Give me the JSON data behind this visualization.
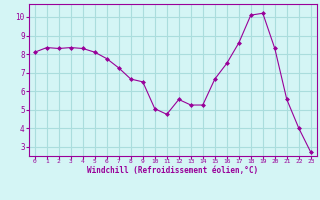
{
  "x": [
    0,
    1,
    2,
    3,
    4,
    5,
    6,
    7,
    8,
    9,
    10,
    11,
    12,
    13,
    14,
    15,
    16,
    17,
    18,
    19,
    20,
    21,
    22,
    23
  ],
  "y": [
    8.1,
    8.35,
    8.3,
    8.35,
    8.3,
    8.1,
    7.75,
    7.25,
    6.65,
    6.5,
    5.05,
    4.75,
    5.55,
    5.25,
    5.25,
    6.65,
    7.5,
    8.6,
    10.1,
    10.2,
    8.3,
    5.55,
    4.0,
    2.7
  ],
  "line_color": "#990099",
  "marker_color": "#990099",
  "bg_color": "#d4f5f5",
  "grid_color": "#aadddd",
  "xlabel": "Windchill (Refroidissement éolien,°C)",
  "xlabel_color": "#990099",
  "tick_color": "#990099",
  "ylim": [
    2.5,
    10.7
  ],
  "xlim": [
    -0.5,
    23.5
  ],
  "yticks": [
    3,
    4,
    5,
    6,
    7,
    8,
    9,
    10
  ],
  "xticks": [
    0,
    1,
    2,
    3,
    4,
    5,
    6,
    7,
    8,
    9,
    10,
    11,
    12,
    13,
    14,
    15,
    16,
    17,
    18,
    19,
    20,
    21,
    22,
    23
  ]
}
